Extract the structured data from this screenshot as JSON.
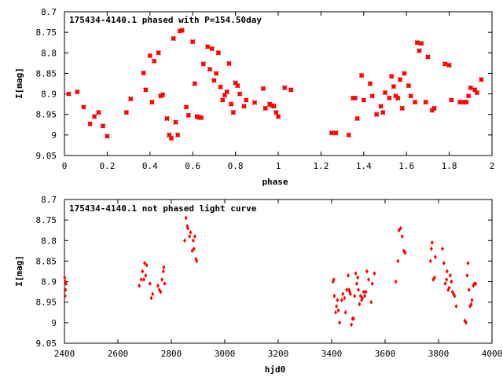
{
  "colors": {
    "points": "#ff0000",
    "axes": "#000000",
    "background": "#ffffff"
  },
  "chart_data": [
    {
      "type": "scatter",
      "title": "175434-4140.1 phased with P=154.50day",
      "xlabel": "phase",
      "ylabel": "I[mag]",
      "xlim": [
        0,
        2
      ],
      "ylim": [
        9.05,
        8.7
      ],
      "y_inverted": true,
      "grid": false,
      "legend": "none",
      "xticks": [
        "0",
        "0.2",
        "0.4",
        "0.6",
        "0.8",
        "1",
        "1.2",
        "1.4",
        "1.6",
        "1.8",
        "2"
      ],
      "yticks": [
        "8.7",
        "8.75",
        "8.8",
        "8.85",
        "8.9",
        "8.95",
        "9",
        "9.05"
      ],
      "x": [
        0.02,
        0.06,
        0.09,
        0.12,
        0.14,
        0.16,
        0.18,
        0.2,
        0.29,
        0.31,
        0.37,
        0.38,
        0.4,
        0.41,
        0.42,
        0.44,
        0.45,
        0.46,
        0.48,
        0.49,
        0.5,
        0.51,
        0.52,
        0.53,
        0.54,
        0.55,
        0.57,
        0.58,
        0.6,
        0.61,
        0.62,
        0.63,
        0.64,
        0.65,
        0.67,
        0.68,
        0.69,
        0.7,
        0.71,
        0.72,
        0.73,
        0.74,
        0.75,
        0.76,
        0.77,
        0.78,
        0.79,
        0.8,
        0.81,
        0.82,
        0.84,
        0.85,
        0.89,
        0.93,
        0.94,
        0.96,
        0.97,
        0.98,
        0.99,
        1.0,
        1.03,
        1.06,
        1.25,
        1.27,
        1.33,
        1.35,
        1.36,
        1.37,
        1.39,
        1.4,
        1.43,
        1.44,
        1.46,
        1.48,
        1.49,
        1.5,
        1.52,
        1.53,
        1.54,
        1.55,
        1.56,
        1.57,
        1.58,
        1.59,
        1.61,
        1.62,
        1.64,
        1.65,
        1.66,
        1.67,
        1.69,
        1.7,
        1.72,
        1.73,
        1.78,
        1.8,
        1.81,
        1.85,
        1.87,
        1.88,
        1.89,
        1.9,
        1.92,
        1.93,
        1.95
      ],
      "y": [
        8.9,
        8.895,
        8.932,
        8.973,
        8.955,
        8.945,
        8.978,
        9.003,
        8.945,
        8.912,
        8.849,
        8.89,
        8.807,
        8.92,
        8.82,
        8.8,
        8.905,
        8.902,
        8.96,
        9.0,
        9.008,
        8.765,
        8.969,
        9.0,
        8.747,
        8.745,
        8.932,
        8.952,
        8.773,
        8.875,
        8.955,
        8.957,
        8.958,
        8.827,
        8.785,
        8.84,
        8.79,
        8.867,
        8.85,
        8.8,
        8.883,
        8.915,
        8.903,
        8.895,
        8.826,
        8.925,
        8.945,
        8.873,
        8.88,
        8.9,
        8.93,
        8.915,
        8.921,
        8.887,
        8.935,
        8.925,
        8.928,
        8.93,
        8.945,
        8.955,
        8.885,
        8.89,
        8.995,
        8.995,
        9.0,
        8.91,
        8.91,
        8.96,
        8.855,
        8.915,
        8.875,
        8.905,
        8.95,
        8.93,
        8.945,
        8.897,
        8.91,
        8.857,
        8.882,
        8.905,
        8.91,
        8.865,
        8.935,
        8.85,
        8.88,
        8.905,
        8.92,
        8.775,
        8.795,
        8.777,
        8.92,
        8.81,
        8.94,
        8.935,
        8.827,
        8.83,
        8.915,
        8.92,
        8.92,
        8.92,
        8.905,
        8.885,
        8.89,
        8.897,
        8.865
      ]
    },
    {
      "type": "scatter",
      "title": "175434-4140.1 not phased light curve",
      "xlabel": "hjd0",
      "ylabel": "I[mag]",
      "xlim": [
        2400,
        4000
      ],
      "ylim": [
        9.05,
        8.7
      ],
      "y_inverted": true,
      "grid": false,
      "legend": "none",
      "xticks": [
        "2400",
        "2600",
        "2800",
        "3000",
        "3200",
        "3400",
        "3600",
        "3800",
        "4000"
      ],
      "yticks": [
        "8.7",
        "8.75",
        "8.8",
        "8.85",
        "8.9",
        "8.95",
        "9",
        "9.05"
      ],
      "x": [
        2401,
        2402,
        2403,
        2404,
        2406,
        2680,
        2687,
        2692,
        2697,
        2700,
        2704,
        2708,
        2720,
        2725,
        2730,
        2750,
        2755,
        2760,
        2765,
        2770,
        2772,
        2775,
        2850,
        2855,
        2860,
        2862,
        2868,
        2872,
        2878,
        2882,
        2885,
        2888,
        2892,
        2895,
        3405,
        3408,
        3410,
        3415,
        3418,
        3422,
        3425,
        3430,
        3438,
        3442,
        3448,
        3452,
        3456,
        3462,
        3465,
        3468,
        3470,
        3474,
        3478,
        3482,
        3486,
        3490,
        3494,
        3497,
        3500,
        3504,
        3508,
        3512,
        3515,
        3520,
        3524,
        3528,
        3532,
        3538,
        3548,
        3552,
        3560,
        3640,
        3648,
        3652,
        3658,
        3664,
        3670,
        3675,
        3770,
        3773,
        3776,
        3780,
        3785,
        3788,
        3815,
        3820,
        3825,
        3830,
        3832,
        3836,
        3840,
        3844,
        3848,
        3852,
        3856,
        3860,
        3866,
        3898,
        3903,
        3907,
        3910,
        3914,
        3918,
        3922,
        3925,
        3930,
        3935,
        3939
      ],
      "y": [
        8.89,
        8.935,
        8.9,
        8.92,
        8.905,
        8.91,
        8.895,
        8.875,
        8.895,
        8.855,
        8.885,
        8.86,
        8.905,
        8.94,
        8.93,
        8.91,
        8.92,
        8.925,
        8.895,
        8.875,
        8.865,
        8.905,
        8.8,
        8.745,
        8.765,
        8.77,
        8.79,
        8.78,
        8.825,
        8.8,
        8.82,
        8.79,
        8.845,
        8.85,
        8.9,
        8.895,
        8.935,
        8.975,
        8.96,
        8.945,
        8.97,
        9.0,
        8.945,
        8.93,
        8.94,
        8.975,
        8.92,
        8.885,
        8.92,
        8.925,
        8.93,
        9.005,
        8.99,
        8.99,
        8.935,
        8.88,
        8.905,
        8.89,
        8.92,
        8.955,
        8.935,
        8.945,
        8.94,
        8.925,
        8.935,
        8.925,
        8.875,
        8.895,
        8.95,
        8.905,
        8.88,
        8.9,
        8.85,
        8.775,
        8.77,
        8.79,
        8.825,
        8.83,
        8.85,
        8.82,
        8.805,
        8.895,
        8.89,
        8.84,
        8.82,
        8.855,
        8.905,
        8.895,
        8.875,
        8.92,
        8.915,
        8.885,
        8.9,
        8.925,
        8.93,
        8.935,
        8.96,
        8.995,
        9.0,
        8.885,
        8.855,
        8.92,
        8.96,
        8.955,
        8.945,
        8.91,
        8.905,
        8.905
      ]
    }
  ]
}
